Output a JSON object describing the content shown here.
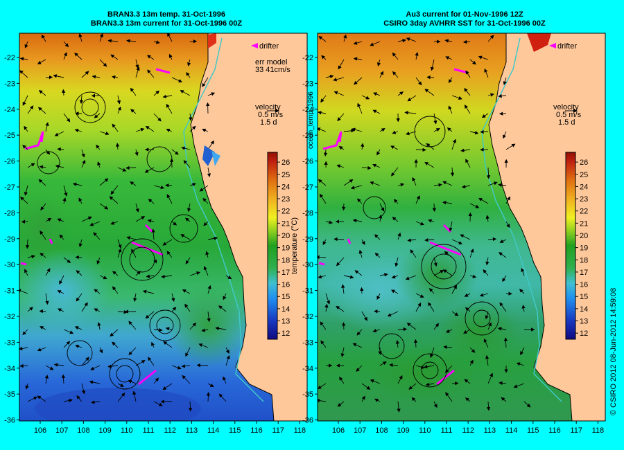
{
  "left_panel": {
    "title_line1": "BRAN3.3 13m temp. 31-Oct-1996",
    "title_line2": "BRAN3.3 13m current for 31-Oct-1996 00Z",
    "drifter_label": "drifter",
    "err_line1": "err model",
    "err_line2": "33 41cm/s",
    "velocity_line1": "velocity",
    "velocity_line2": "0.5 m/s",
    "velocity_line3": "1.5 d"
  },
  "right_panel": {
    "title_line1": "Au3 current for 01-Nov-1996 12Z",
    "title_line2": "CSIRO 3day AVHRR SST for 31-Oct-1996 00Z",
    "drifter_label": "drifter",
    "velocity_line1": "velocity",
    "velocity_line2": "0.5 m/s",
    "velocity_line3": "1.5 d"
  },
  "vertical_label": "ocean_temp_1996",
  "colorbar": {
    "label": "temperature (°C)",
    "ticks": [
      "26",
      "25",
      "24",
      "23",
      "22",
      "21",
      "20",
      "19",
      "18",
      "17",
      "16",
      "15",
      "14",
      "13",
      "12"
    ],
    "min": 11.5,
    "max": 26.8
  },
  "axes": {
    "lat_ticks": [
      "-22",
      "-23",
      "-24",
      "-25",
      "-26",
      "-27",
      "-28",
      "-29",
      "-30",
      "-31",
      "-32",
      "-33",
      "-34",
      "-35",
      "-36"
    ],
    "lon_ticks": [
      "106",
      "107",
      "108",
      "109",
      "110",
      "111",
      "112",
      "113",
      "114",
      "115",
      "116",
      "117",
      "118"
    ]
  },
  "credit": "© CSIRO 2012   08-Jun-2012 14:59:08",
  "colors": {
    "background": "#00ffff",
    "land": "#ffc89a",
    "drifter": "#ff00ff",
    "coast_contour": "#40c8c8"
  }
}
